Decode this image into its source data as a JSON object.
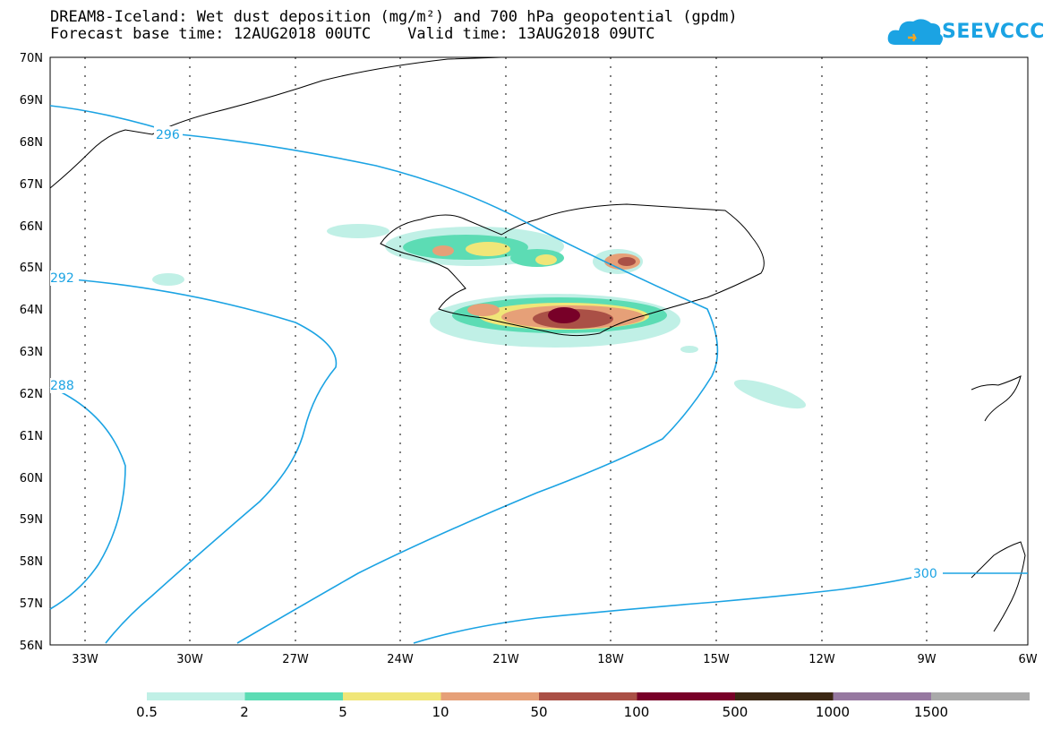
{
  "header": {
    "title_line1": "DREAM8-Iceland: Wet dust deposition (mg/m²) and 700 hPa geopotential (gpdm)",
    "title_line2": "Forecast base time: 12AUG2018 00UTC    Valid time: 13AUG2018 09UTC"
  },
  "logo": {
    "text": "SEEVCCC",
    "color": "#1ba3e3"
  },
  "map": {
    "lat_labels": [
      "70N",
      "69N",
      "68N",
      "67N",
      "66N",
      "65N",
      "64N",
      "63N",
      "62N",
      "61N",
      "60N",
      "59N",
      "58N",
      "57N",
      "56N"
    ],
    "lon_labels": [
      "33W",
      "30W",
      "27W",
      "24W",
      "21W",
      "18W",
      "15W",
      "12W",
      "9W",
      "6W"
    ],
    "contour_labels": [
      "296",
      "292",
      "288",
      "300"
    ],
    "contour_color": "#1ba3e3"
  },
  "colorbar": {
    "colors": [
      "#c0f0e6",
      "#5cdcb4",
      "#f0e678",
      "#e6a078",
      "#aa5046",
      "#780028",
      "#3c2814",
      "#9678a0",
      "#aaaaaa"
    ],
    "labels": [
      "0.5",
      "2",
      "5",
      "10",
      "50",
      "100",
      "500",
      "1000",
      "1500"
    ]
  }
}
